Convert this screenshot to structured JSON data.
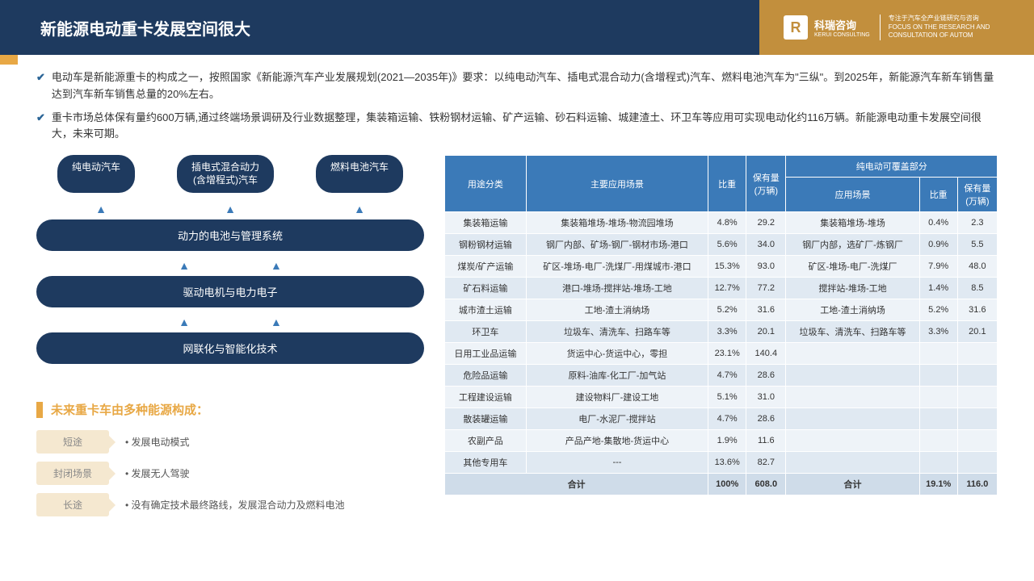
{
  "header": {
    "title": "新能源电动重卡发展空间很大",
    "logo_letter": "R",
    "logo_cn": "科瑞咨询",
    "logo_en": "KERUI CONSULTING",
    "tagline1": "专注于汽车全产业链研究与咨询",
    "tagline2": "FOCUS ON THE RESEARCH AND",
    "tagline3": "CONSULTATION OF AUTOM"
  },
  "bullets": [
    "电动车是新能源重卡的构成之一，按照国家《新能源汽车产业发展规划(2021—2035年)》要求：以纯电动汽车、插电式混合动力(含增程式)汽车、燃料电池汽车为\"三纵\"。到2025年，新能源汽车新车销售量达到汽车新车销售总量的20%左右。",
    "重卡市场总体保有量约600万辆,通过终端场景调研及行业数据整理，集装箱运输、铁粉钢材运输、矿产运输、砂石料运输、城建渣土、环卫车等应用可实现电动化约116万辆。新能源电动重卡发展空间很大，未来可期。"
  ],
  "diagram": {
    "car_types": [
      "纯电动汽车",
      "插电式混合动力\n(含增程式)汽车",
      "燃料电池汽车"
    ],
    "layers": [
      "动力的电池与管理系统",
      "驱动电机与电力电子",
      "网联化与智能化技术"
    ]
  },
  "section_title": "未来重卡车由多种能源构成：",
  "traits": [
    {
      "label": "短途",
      "desc": "发展电动模式"
    },
    {
      "label": "封闭场景",
      "desc": "发展无人驾驶"
    },
    {
      "label": "长途",
      "desc": "没有确定技术最终路线，发展混合动力及燃料电池"
    }
  ],
  "table": {
    "header1": [
      "用途分类",
      "主要应用场景",
      "比重",
      "保有量\n(万辆)",
      "纯电动可覆盖部分"
    ],
    "header2": [
      "应用场景",
      "比重",
      "保有量\n(万辆)"
    ],
    "rows": [
      [
        "集装箱运输",
        "集装箱堆场-堆场-物流园堆场",
        "4.8%",
        "29.2",
        "集装箱堆场-堆场",
        "0.4%",
        "2.3"
      ],
      [
        "钢粉钢材运输",
        "钢厂内部、矿场-钢厂-钢材市场-港口",
        "5.6%",
        "34.0",
        "钢厂内部，选矿厂-炼钢厂",
        "0.9%",
        "5.5"
      ],
      [
        "煤炭/矿产运输",
        "矿区-堆场-电厂-洗煤厂-用煤城市-港口",
        "15.3%",
        "93.0",
        "矿区-堆场-电厂-洗煤厂",
        "7.9%",
        "48.0"
      ],
      [
        "矿石料运输",
        "港口-堆场-搅拌站-堆场-工地",
        "12.7%",
        "77.2",
        "搅拌站-堆场-工地",
        "1.4%",
        "8.5"
      ],
      [
        "城市渣土运输",
        "工地-渣土消纳场",
        "5.2%",
        "31.6",
        "工地-渣土消纳场",
        "5.2%",
        "31.6"
      ],
      [
        "环卫车",
        "垃圾车、清洗车、扫路车等",
        "3.3%",
        "20.1",
        "垃圾车、清洗车、扫路车等",
        "3.3%",
        "20.1"
      ],
      [
        "日用工业品运输",
        "货运中心-货运中心，零担",
        "23.1%",
        "140.4",
        "",
        "",
        ""
      ],
      [
        "危险品运输",
        "原料-油库-化工厂-加气站",
        "4.7%",
        "28.6",
        "",
        "",
        ""
      ],
      [
        "工程建设运输",
        "建设物料厂-建设工地",
        "5.1%",
        "31.0",
        "",
        "",
        ""
      ],
      [
        "散装罐运输",
        "电厂-水泥厂-搅拌站",
        "4.7%",
        "28.6",
        "",
        "",
        ""
      ],
      [
        "农副产品",
        "产品产地-集散地-货运中心",
        "1.9%",
        "11.6",
        "",
        "",
        ""
      ],
      [
        "其他专用车",
        "---",
        "13.6%",
        "82.7",
        "",
        "",
        ""
      ]
    ],
    "total": [
      "合计",
      "",
      "100%",
      "608.0",
      "合计",
      "19.1%",
      "116.0"
    ]
  }
}
